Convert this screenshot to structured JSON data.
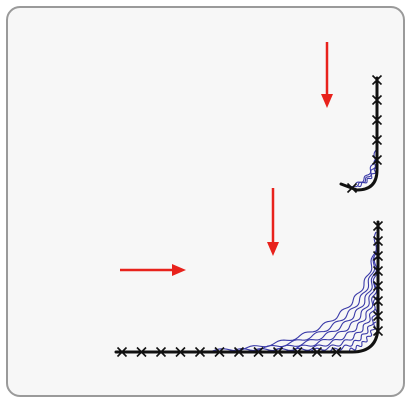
{
  "colors": {
    "background": "#f7f7f7",
    "border": "#9a9a9a",
    "arrow": "#e8221c",
    "wire": "#3a3aa8",
    "stitch": "#111111"
  },
  "icons": {
    "arrow": "arrow-icon",
    "stitch": "cross-stitch-icon"
  },
  "diagram": {
    "small_corner": {
      "fiber_count": 3,
      "stitch_count": 6
    },
    "large_corner": {
      "fiber_count": 8,
      "vertical_stitch_count": 8,
      "horizontal_stitch_count": 12
    },
    "arrows": [
      {
        "direction": "down"
      },
      {
        "direction": "down"
      },
      {
        "direction": "right"
      }
    ]
  }
}
